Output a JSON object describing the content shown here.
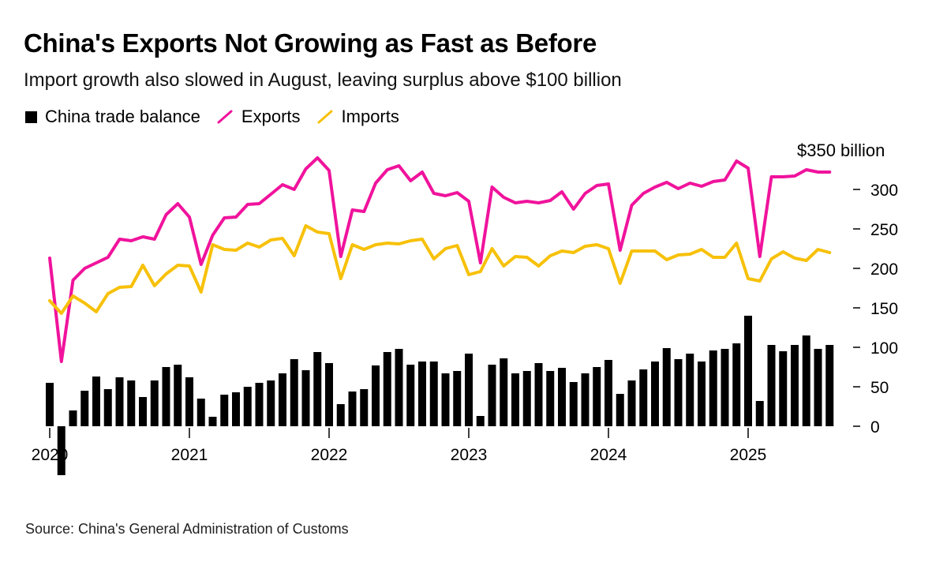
{
  "header": {
    "title": "China's Exports Not Growing as Fast as Before",
    "subtitle": "Import growth also slowed in August, leaving surplus above $100 billion"
  },
  "legend": [
    {
      "label": "China trade balance",
      "color": "#000000",
      "kind": "bar"
    },
    {
      "label": "Exports",
      "color": "#f0139c",
      "kind": "line"
    },
    {
      "label": "Imports",
      "color": "#f7c10a",
      "kind": "line"
    }
  ],
  "source": "Source: China's General Administration of Customs",
  "chart_data": {
    "type": "bar+line",
    "x_start": "2020-01",
    "x_ticks": [
      "2020",
      "2021",
      "2022",
      "2023",
      "2024",
      "2025"
    ],
    "y_ticks": [
      "0",
      "50",
      "100",
      "150",
      "200",
      "250",
      "300"
    ],
    "y_top_label": "$350 billion",
    "ylim": [
      -65,
      355
    ],
    "series": [
      {
        "name": "China trade balance",
        "kind": "bar",
        "color": "#000000",
        "values": [
          55,
          -62,
          20,
          45,
          63,
          47,
          62,
          58,
          37,
          58,
          75,
          78,
          62,
          35,
          12,
          40,
          43,
          50,
          55,
          58,
          67,
          85,
          71,
          94,
          80,
          28,
          44,
          47,
          77,
          94,
          98,
          78,
          82,
          82,
          67,
          70,
          92,
          13,
          78,
          86,
          67,
          70,
          80,
          70,
          74,
          56,
          67,
          75,
          84,
          41,
          58,
          72,
          82,
          99,
          85,
          92,
          82,
          96,
          98,
          105,
          140,
          32,
          103,
          95,
          103,
          115,
          98,
          103
        ]
      },
      {
        "name": "Exports",
        "kind": "line",
        "color": "#f0139c",
        "values": [
          213,
          82,
          185,
          200,
          207,
          214,
          237,
          235,
          240,
          237,
          268,
          282,
          265,
          205,
          242,
          264,
          265,
          281,
          282,
          294,
          306,
          300,
          326,
          340,
          324,
          215,
          274,
          272,
          308,
          325,
          330,
          311,
          322,
          295,
          292,
          296,
          285,
          207,
          303,
          290,
          283,
          285,
          283,
          286,
          297,
          275,
          295,
          305,
          307,
          223,
          280,
          295,
          303,
          309,
          301,
          308,
          304,
          310,
          312,
          336,
          327,
          215,
          316,
          316,
          317,
          325,
          322,
          322
        ]
      },
      {
        "name": "Imports",
        "kind": "line",
        "color": "#f7c10a",
        "values": [
          159,
          143,
          165,
          156,
          145,
          168,
          176,
          177,
          204,
          178,
          193,
          204,
          203,
          170,
          230,
          224,
          223,
          232,
          227,
          236,
          238,
          216,
          254,
          246,
          244,
          187,
          230,
          224,
          230,
          232,
          231,
          235,
          237,
          212,
          225,
          229,
          192,
          196,
          225,
          203,
          215,
          214,
          203,
          216,
          222,
          220,
          228,
          230,
          225,
          181,
          222,
          222,
          222,
          211,
          217,
          218,
          224,
          214,
          214,
          232,
          187,
          184,
          212,
          221,
          213,
          210,
          224,
          220
        ]
      }
    ]
  }
}
